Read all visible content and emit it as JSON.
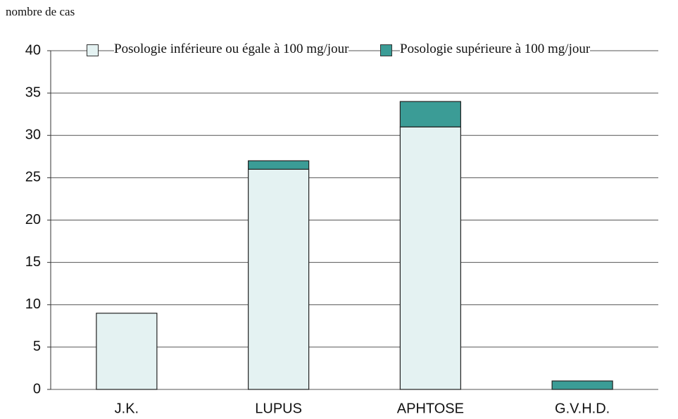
{
  "chart_data": {
    "type": "stacked_bar",
    "y_label": "nombre de cas",
    "categories": [
      "J.K.",
      "LUPUS",
      "APHTOSE",
      "G.V.H.D."
    ],
    "series": [
      {
        "name": "Posologie inférieure ou égale à 100 mg/jour",
        "color": "#e4f2f2",
        "values": [
          9,
          26,
          31,
          0
        ]
      },
      {
        "name": "Posologie supérieure à 100 mg/jour",
        "color": "#3b9c96",
        "values": [
          0,
          1,
          3,
          1
        ]
      }
    ],
    "ylim": [
      0,
      40
    ],
    "yticks": [
      0,
      5,
      10,
      15,
      20,
      25,
      30,
      35,
      40
    ],
    "grid": true,
    "legend": "top"
  }
}
